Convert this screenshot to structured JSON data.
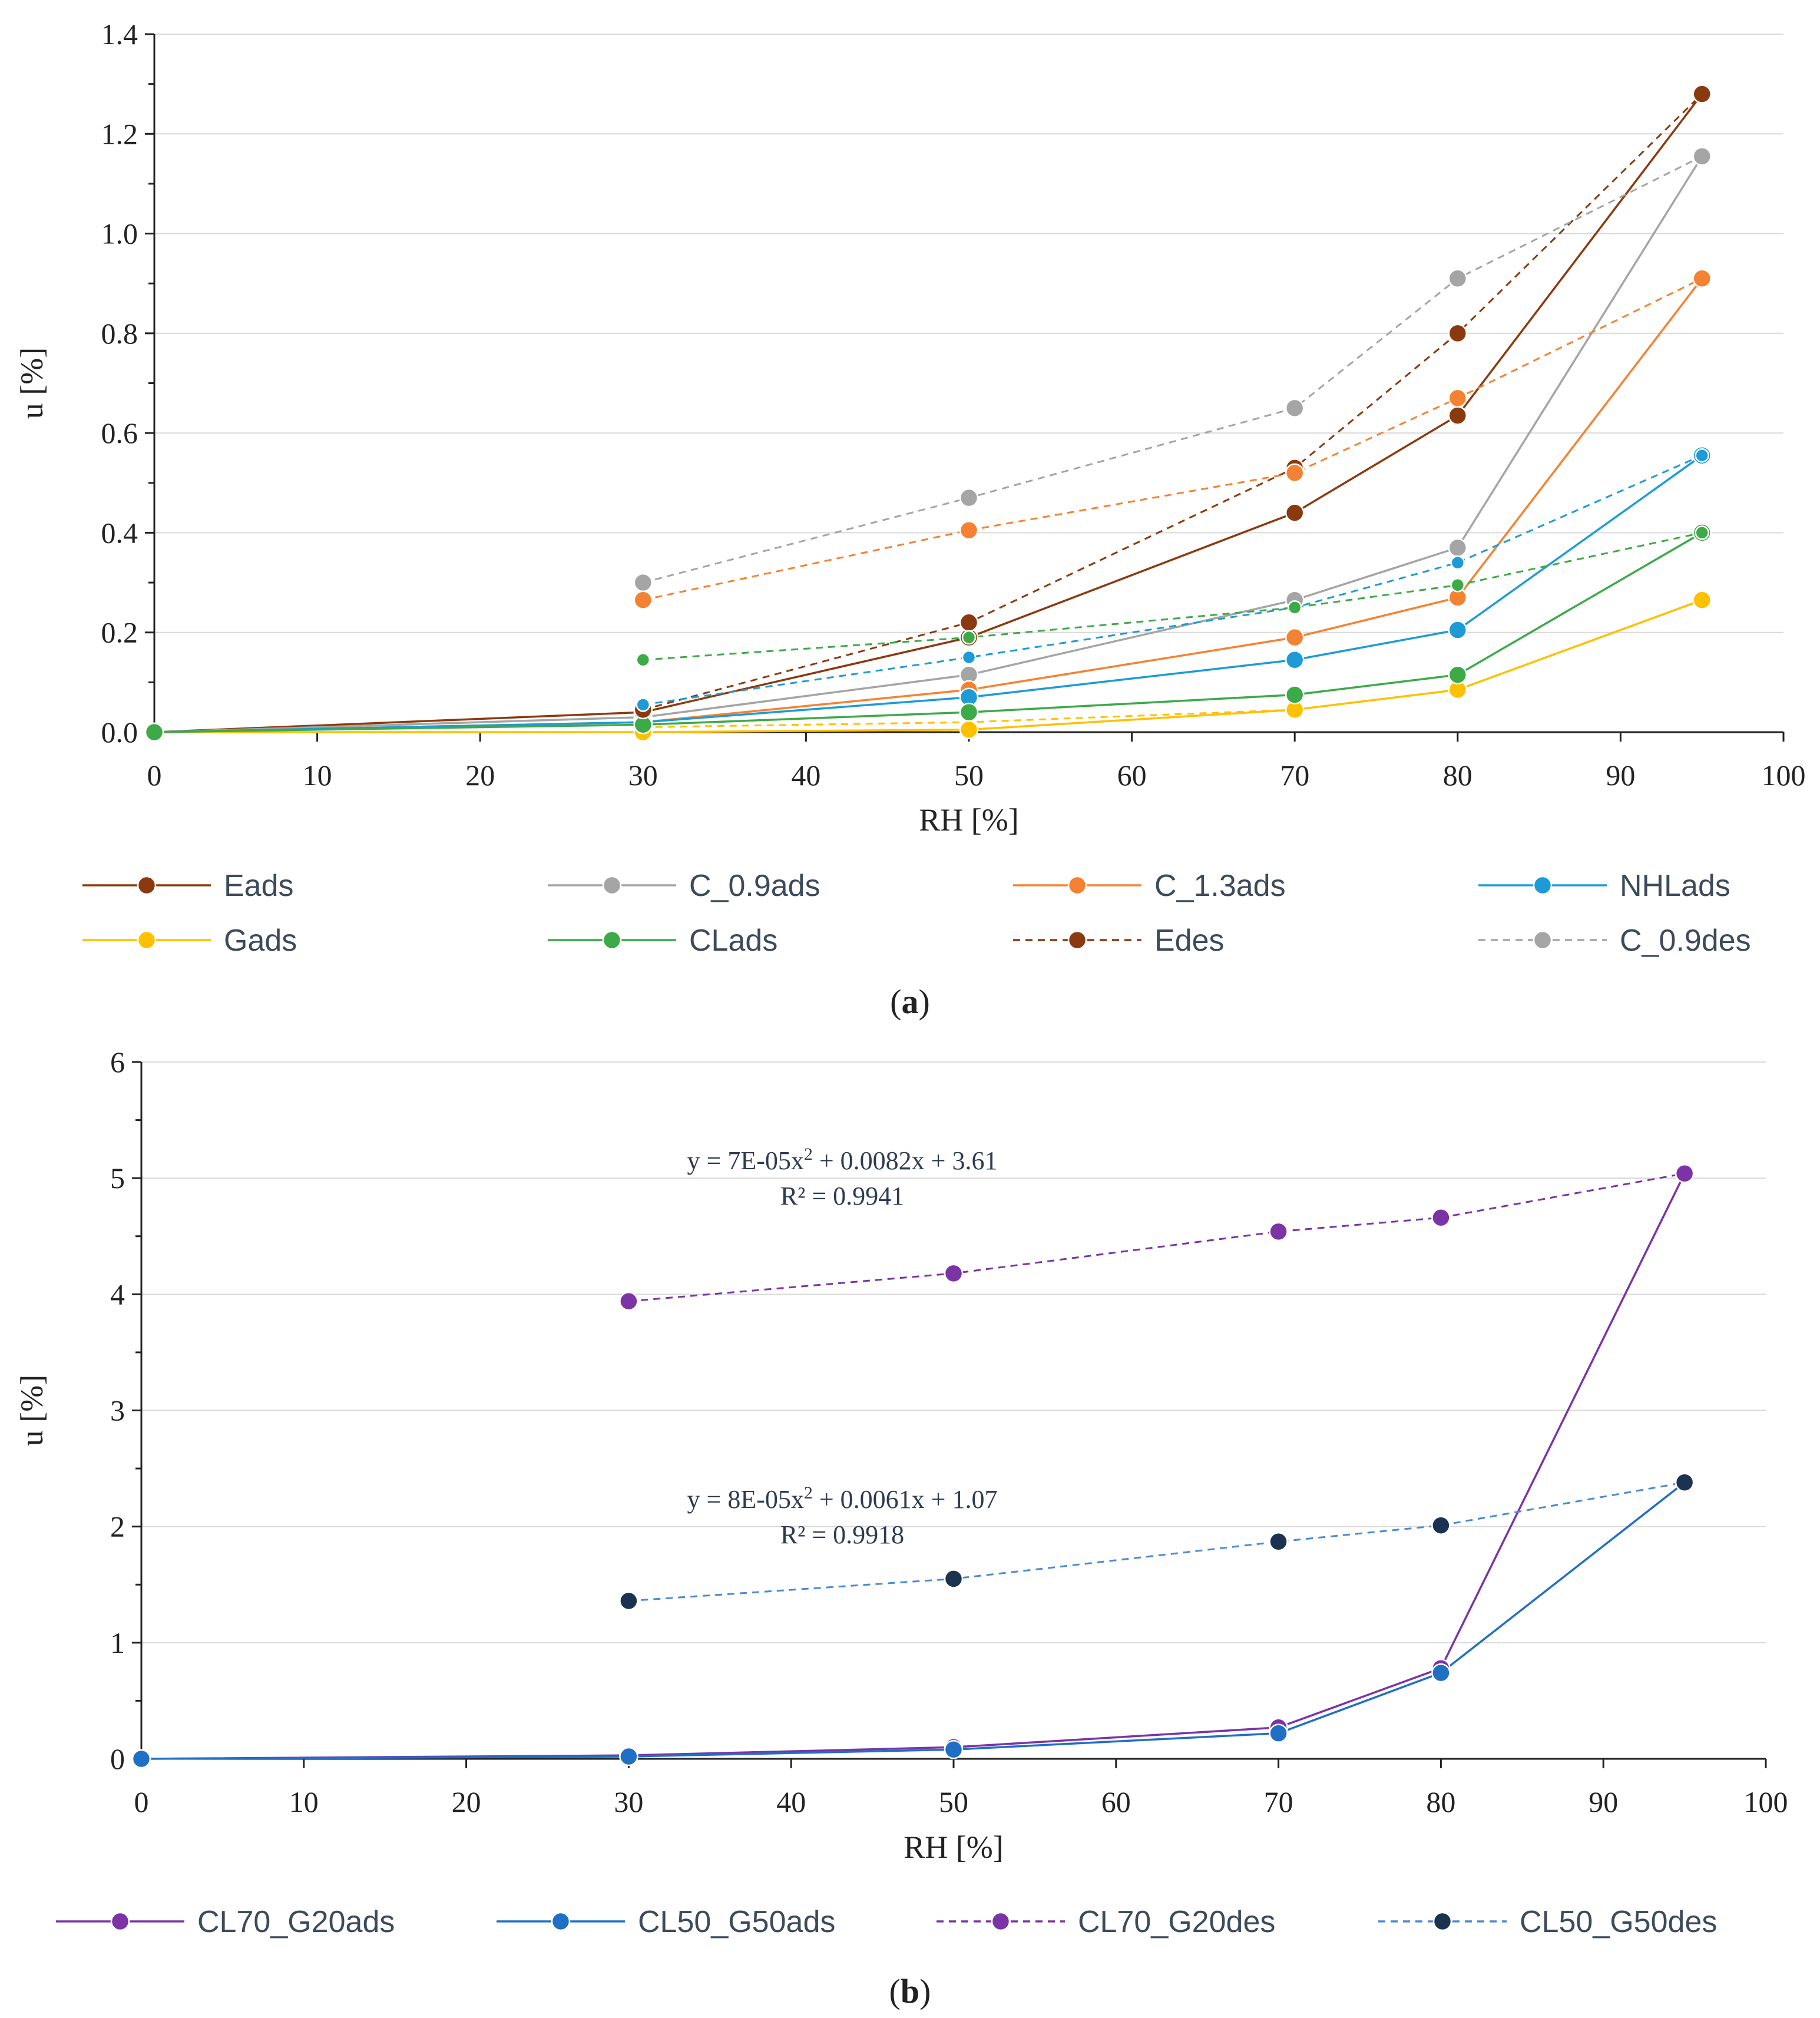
{
  "chart_data": [
    {
      "type": "line",
      "panel_label": "a",
      "title": "",
      "xlabel": "RH [%]",
      "ylabel": "u [%]",
      "xlim": [
        0,
        100
      ],
      "ylim": [
        0,
        1.4
      ],
      "xticks": [
        0,
        10,
        20,
        30,
        40,
        50,
        60,
        70,
        80,
        90,
        100
      ],
      "yticks": [
        "0.0",
        "0.2",
        "0.4",
        "0.6",
        "0.8",
        "1.0",
        "1.2",
        "1.4"
      ],
      "grid": "horizontal",
      "legend_position": "bottom",
      "series": [
        {
          "name": "Eads",
          "color": "#8B3A0F",
          "dashed": false,
          "x": [
            0,
            30,
            50,
            70,
            80,
            95
          ],
          "y": [
            0,
            0.04,
            0.19,
            0.44,
            0.635,
            1.28
          ]
        },
        {
          "name": "C_0.9ads",
          "color": "#A5A5A5",
          "dashed": false,
          "x": [
            0,
            30,
            50,
            70,
            80,
            95
          ],
          "y": [
            0,
            0.03,
            0.115,
            0.265,
            0.37,
            1.155
          ]
        },
        {
          "name": "C_1.3ads",
          "color": "#F58232",
          "dashed": false,
          "x": [
            0,
            30,
            50,
            70,
            80,
            95
          ],
          "y": [
            0,
            0.02,
            0.085,
            0.19,
            0.27,
            0.91
          ]
        },
        {
          "name": "NHLads",
          "color": "#1E9BD7",
          "dashed": false,
          "x": [
            0,
            30,
            50,
            70,
            80,
            95
          ],
          "y": [
            0,
            0.02,
            0.07,
            0.145,
            0.205,
            0.555
          ]
        },
        {
          "name": "Gads",
          "color": "#FFC000",
          "dashed": false,
          "x": [
            0,
            30,
            50,
            70,
            80,
            95
          ],
          "y": [
            0,
            0.0,
            0.005,
            0.045,
            0.085,
            0.265
          ]
        },
        {
          "name": "CLads",
          "color": "#3DAA48",
          "dashed": false,
          "x": [
            0,
            30,
            50,
            70,
            80,
            95
          ],
          "y": [
            0,
            0.015,
            0.04,
            0.075,
            0.115,
            0.4
          ]
        },
        {
          "name": "Edes",
          "color": "#8B3A0F",
          "dashed": true,
          "x": [
            30,
            50,
            70,
            80,
            95
          ],
          "y": [
            0.045,
            0.22,
            0.53,
            0.8,
            1.28
          ]
        },
        {
          "name": "C_0.9des",
          "color": "#A5A5A5",
          "dashed": true,
          "x": [
            30,
            50,
            70,
            80,
            95
          ],
          "y": [
            0.3,
            0.47,
            0.65,
            0.91,
            1.155
          ]
        },
        {
          "name": "C_1.3des",
          "color": "#F58232",
          "dashed": true,
          "legend": false,
          "x": [
            30,
            50,
            70,
            80,
            95
          ],
          "y": [
            0.265,
            0.405,
            0.52,
            0.67,
            0.91
          ]
        },
        {
          "name": "NHLdes",
          "color": "#1E9BD7",
          "dashed": true,
          "legend": false,
          "small_marker": true,
          "x": [
            30,
            50,
            70,
            80,
            95
          ],
          "y": [
            0.055,
            0.15,
            0.25,
            0.34,
            0.555
          ]
        },
        {
          "name": "CLdes",
          "color": "#3DAA48",
          "dashed": true,
          "legend": false,
          "small_marker": true,
          "x": [
            30,
            50,
            70,
            80,
            95
          ],
          "y": [
            0.145,
            0.19,
            0.25,
            0.295,
            0.4
          ]
        },
        {
          "name": "Gdes",
          "color": "#FFC000",
          "dashed": true,
          "legend": false,
          "no_marker": true,
          "x": [
            30,
            50,
            70,
            80,
            95
          ],
          "y": [
            0.01,
            0.02,
            0.045,
            0.085,
            0.265
          ]
        }
      ]
    },
    {
      "type": "line",
      "panel_label": "b",
      "title": "",
      "xlabel": "RH [%]",
      "ylabel": "u [%]",
      "xlim": [
        0,
        100
      ],
      "ylim": [
        0,
        6
      ],
      "xticks": [
        0,
        10,
        20,
        30,
        40,
        50,
        60,
        70,
        80,
        90,
        100
      ],
      "yticks": [
        "0",
        "1",
        "2",
        "3",
        "4",
        "5",
        "6"
      ],
      "grid": "horizontal",
      "legend_position": "bottom",
      "series": [
        {
          "name": "CL70_G20ads",
          "color": "#7B33A6",
          "dashed": false,
          "x": [
            0,
            30,
            50,
            70,
            80,
            95
          ],
          "y": [
            0,
            0.03,
            0.1,
            0.27,
            0.78,
            5.04
          ]
        },
        {
          "name": "CL50_G50ads",
          "color": "#1F6FC5",
          "dashed": false,
          "x": [
            0,
            30,
            50,
            70,
            80,
            95
          ],
          "y": [
            0,
            0.02,
            0.08,
            0.22,
            0.74,
            2.38
          ]
        },
        {
          "name": "CL70_G20des",
          "color": "#7B33A6",
          "dashed": true,
          "x": [
            30,
            50,
            70,
            80,
            95
          ],
          "y": [
            3.94,
            4.18,
            4.54,
            4.66,
            5.04
          ]
        },
        {
          "name": "CL50_G50des",
          "color": "#4A8AD4",
          "marker_color": "#1B3350",
          "dashed": true,
          "x": [
            30,
            50,
            70,
            80,
            95
          ],
          "y": [
            1.36,
            1.55,
            1.87,
            2.01,
            2.38
          ]
        }
      ],
      "annotations": [
        {
          "line1": "y = 7E-05x",
          "sup": "2",
          "line1b": " + 0.0082x + 3.61",
          "line2": "R² = 0.9941"
        },
        {
          "line1": "y = 8E-05x",
          "sup": "2",
          "line1b": " + 0.0061x + 1.07",
          "line2": "R² = 0.9918"
        }
      ]
    }
  ]
}
